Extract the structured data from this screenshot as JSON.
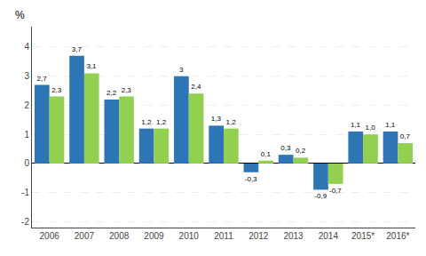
{
  "chart_data": {
    "type": "bar",
    "annotations": [
      "%"
    ],
    "categories": [
      "2006",
      "2007",
      "2008",
      "2009",
      "2010",
      "2011",
      "2012",
      "2013",
      "2014",
      "2015*",
      "2016*"
    ],
    "series": [
      {
        "color": "#2E75B6",
        "values": [
          2.7,
          3.7,
          2.2,
          1.2,
          3.0,
          1.3,
          -0.3,
          0.3,
          -0.9,
          1.1,
          1.1
        ],
        "value_labels": [
          "2,7",
          "3,7",
          "2,2",
          "1,2",
          "3",
          "1,3",
          "-0,3",
          "0,3",
          "-0,9",
          "1,1",
          "1,1"
        ]
      },
      {
        "color": "#92D050",
        "values": [
          2.3,
          3.1,
          2.3,
          1.2,
          2.4,
          1.2,
          0.1,
          0.2,
          -0.7,
          1.0,
          0.7
        ],
        "value_labels": [
          "2,3",
          "3,1",
          "2,3",
          "1,2",
          "2,4",
          "1,2",
          "0,1",
          "0,2",
          "-0,7",
          "1,0",
          "0,7"
        ]
      }
    ],
    "ylim": [
      -2.2,
      4.7
    ],
    "yticks": [
      -2,
      -1,
      0,
      1,
      2,
      3,
      4
    ],
    "grid": true,
    "data_labels": true
  }
}
